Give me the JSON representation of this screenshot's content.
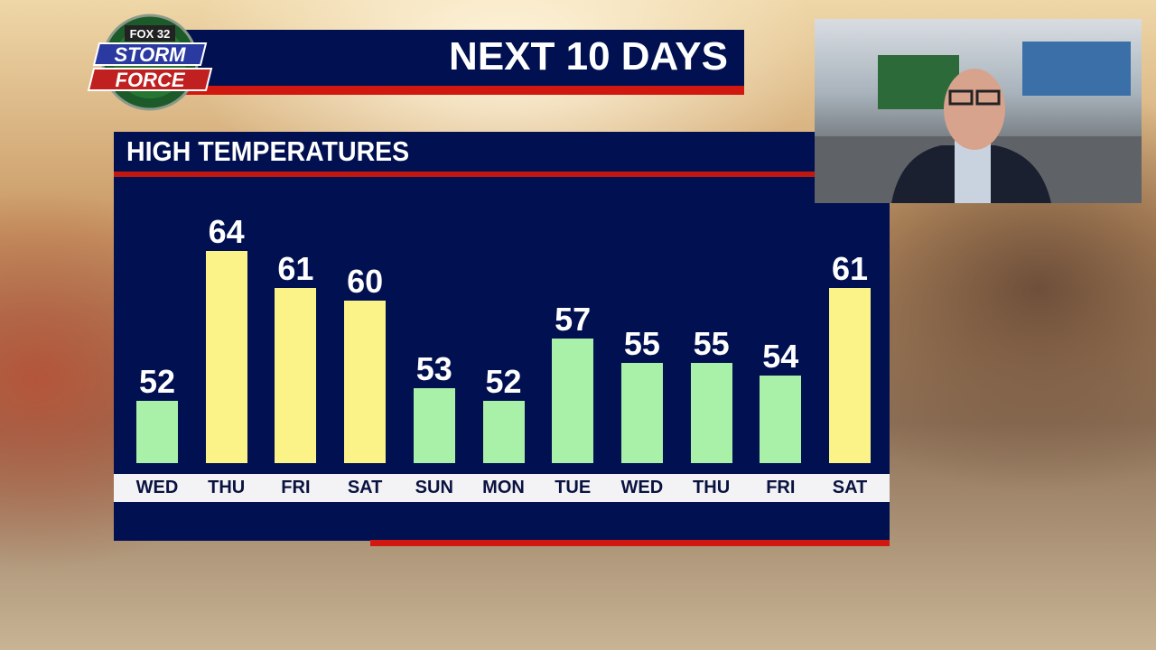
{
  "logo": {
    "line1": "FOX 32",
    "line2": "STORM",
    "line3": "FORCE"
  },
  "header": {
    "title": "NEXT 10 DAYS"
  },
  "panel": {
    "title": "HIGH TEMPERATURES"
  },
  "colors": {
    "navy": "#001050",
    "red": "#d01810",
    "warm_bar": "#fbf387",
    "cool_bar": "#a9f0a9"
  },
  "chart_data": {
    "type": "bar",
    "title": "HIGH TEMPERATURES",
    "categories": [
      "WED",
      "THU",
      "FRI",
      "SAT",
      "SUN",
      "MON",
      "TUE",
      "WED",
      "THU",
      "FRI",
      "SAT"
    ],
    "values": [
      52,
      64,
      61,
      60,
      53,
      52,
      57,
      55,
      55,
      54,
      61
    ],
    "bar_colors": [
      "cool",
      "warm",
      "warm",
      "warm",
      "cool",
      "cool",
      "cool",
      "cool",
      "cool",
      "cool",
      "warm"
    ],
    "data_labels": true,
    "grid": false
  },
  "pip": {
    "icon": "presenter-video-feed"
  }
}
